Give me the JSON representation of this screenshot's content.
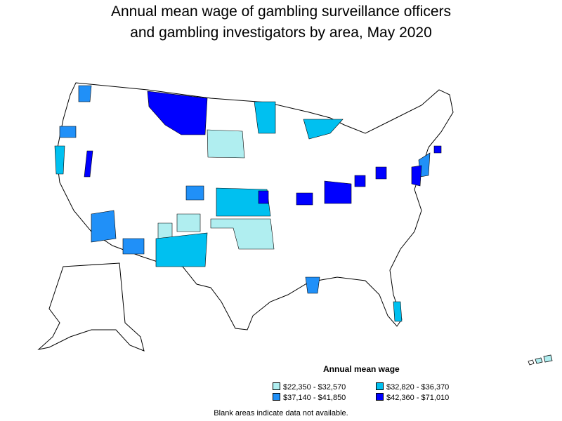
{
  "title": {
    "line1": "Annual mean wage of gambling surveillance officers",
    "line2": "and gambling investigators by area, May 2020"
  },
  "legend": {
    "title": "Annual mean wage",
    "items": [
      {
        "label": "$22,350 - $32,570",
        "color": "#b0eef0"
      },
      {
        "label": "$32,820 - $36,370",
        "color": "#00c0f0"
      },
      {
        "label": "$37,140 - $41,850",
        "color": "#2090f8"
      },
      {
        "label": "$42,360 - $71,010",
        "color": "#0000ff"
      }
    ]
  },
  "note": "Blank areas indicate data not available.",
  "colors": {
    "outline": "#000000",
    "background": "#ffffff"
  }
}
